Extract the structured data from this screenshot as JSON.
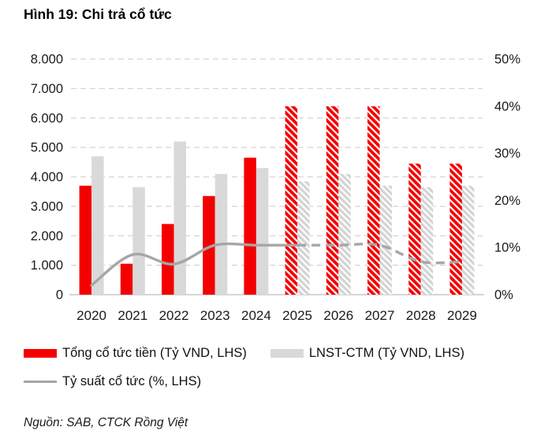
{
  "title": "Hình 19: Chi trả cổ tức",
  "source": "Nguồn: SAB, CTCK Rồng Việt",
  "colors": {
    "red_bar": "#F40000",
    "gray_bar": "#D9D9D9",
    "line": "#A6A6A6",
    "gridline": "#D4D4D4",
    "axis_line": "#C9C9C9",
    "text": "#1A1A1A"
  },
  "legend": {
    "items": [
      {
        "type": "bar",
        "color": "#F40000",
        "label": "Tổng cổ tức tiền (Tỷ VND, LHS)"
      },
      {
        "type": "bar",
        "color": "#D9D9D9",
        "label": "LNST-CTM (Tỷ VND, LHS)"
      },
      {
        "type": "line",
        "color": "#A6A6A6",
        "label": "Tỷ suất cổ tức (%, LHS)"
      }
    ]
  },
  "chart_data": {
    "type": "combo-bar-line",
    "title": "Hình 19: Chi trả cổ tức",
    "categories": [
      "2020",
      "2021",
      "2022",
      "2023",
      "2024",
      "2025",
      "2026",
      "2027",
      "2028",
      "2029"
    ],
    "series": [
      {
        "name": "Tổng cổ tức tiền (Tỷ VND, LHS)",
        "type": "bar",
        "axis": "left",
        "color": "#F40000",
        "values": [
          3700,
          1050,
          2400,
          3350,
          4650,
          6400,
          6400,
          6400,
          4450,
          4450
        ],
        "forecast_from_index": 5,
        "forecast_style": "diagonal-hatch"
      },
      {
        "name": "LNST-CTM (Tỷ VND, LHS)",
        "type": "bar",
        "axis": "left",
        "color": "#D9D9D9",
        "values": [
          4700,
          3650,
          5200,
          4100,
          4300,
          3850,
          4100,
          3700,
          3650,
          3700
        ],
        "forecast_from_index": 5,
        "forecast_style": "diagonal-hatch"
      },
      {
        "name": "Tỷ suất cổ tức (%, LHS)",
        "type": "line",
        "axis": "right",
        "color": "#A6A6A6",
        "values": [
          2,
          8.5,
          6.5,
          10.5,
          10.5,
          10.5,
          10.5,
          10.5,
          7,
          7
        ],
        "forecast_from_index": 5,
        "forecast_style": "dashed"
      }
    ],
    "left_axis": {
      "min": 0,
      "max": 8000,
      "step": 1000,
      "tick_labels": [
        "0",
        "1.000",
        "2.000",
        "3.000",
        "4.000",
        "5.000",
        "6.000",
        "7.000",
        "8.000"
      ]
    },
    "right_axis": {
      "min": 0,
      "max": 50,
      "step": 10,
      "tick_labels": [
        "0%",
        "10%",
        "20%",
        "30%",
        "40%",
        "50%"
      ]
    },
    "grid": "dashed-horizontal",
    "legend_position": "bottom"
  }
}
